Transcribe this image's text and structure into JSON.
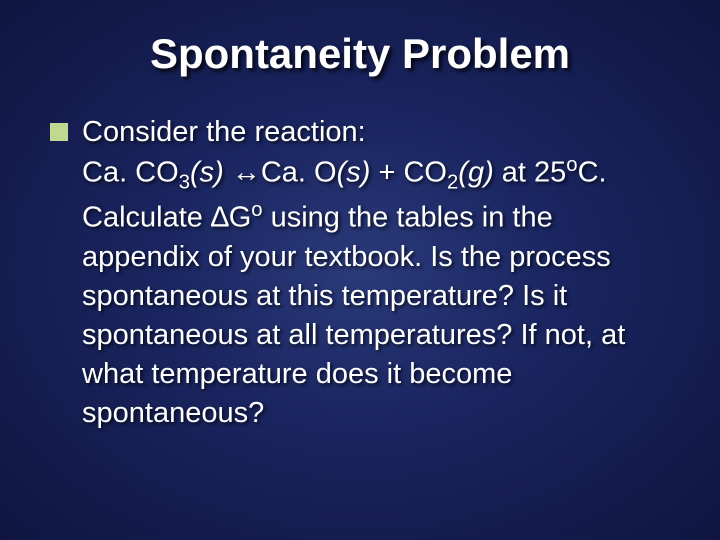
{
  "slide": {
    "title": "Spontaneity Problem",
    "bullet_color": "#c0d890",
    "text_color": "#ffffff",
    "background_gradient": [
      "#2a3a7a",
      "#1a2560",
      "#0f1540"
    ],
    "title_fontsize": 42,
    "body_fontsize": 29,
    "body": {
      "line1": "Consider the reaction:",
      "eq_prefix1": "Ca. CO",
      "eq_sub1": "3",
      "eq_state1": "(s)",
      "eq_arrow": " ↔",
      "eq_prefix2": "Ca. O",
      "eq_state2": "(s)",
      "eq_plus": "  +  CO",
      "eq_sub2": "2",
      "eq_state3": "(g)",
      "eq_at": "  at 25",
      "eq_sup_o": "o",
      "eq_c": "C.",
      "line3a": "Calculate ∆G",
      "line3sup": "o",
      "line3b": " using the tables in the appendix of your textbook.  Is the process spontaneous at this temperature?  Is it spontaneous at all temperatures?  If not, at what temperature does it become spontaneous?"
    }
  }
}
